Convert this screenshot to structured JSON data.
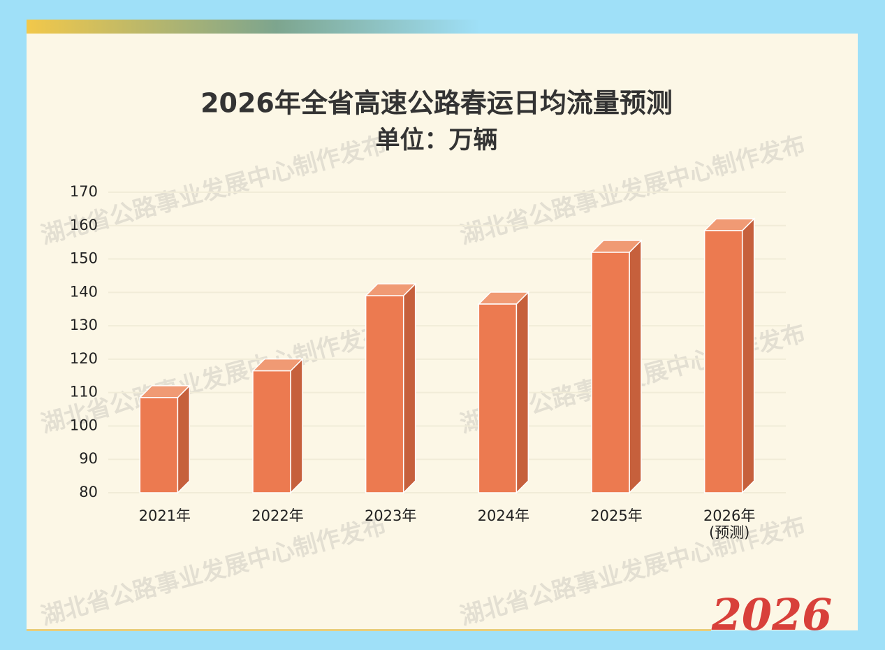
{
  "chart_data": {
    "type": "bar3d",
    "title": "2026年全省高速公路春运日均流量预测",
    "subtitle": "单位：万辆",
    "categories": [
      "2021年",
      "2022年",
      "2023年",
      "2024年",
      "2025年",
      "2026年\n(预测)"
    ],
    "values": [
      108.5,
      116.5,
      139,
      136.5,
      152,
      158.5
    ],
    "color": "#ec7a50",
    "ylim": [
      80,
      170
    ],
    "yticks": [
      80,
      90,
      100,
      110,
      120,
      130,
      140,
      150,
      160,
      170
    ],
    "grid": true,
    "watermark": "湖北省公路事业发展中心制作发布",
    "logo_text": "2026"
  }
}
